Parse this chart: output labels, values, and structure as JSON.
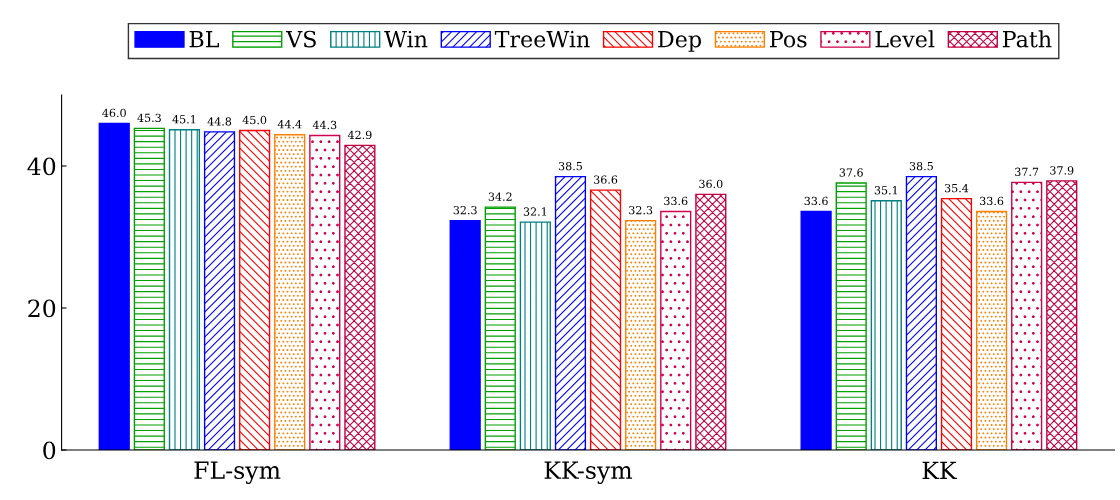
{
  "chart_data": {
    "type": "bar",
    "categories": [
      "FL-sym",
      "KK-sym",
      "KK"
    ],
    "series": [
      {
        "name": "BL",
        "color": "#0000ff",
        "values": [
          46.0,
          32.3,
          33.6
        ],
        "value_labels": [
          "46.0",
          "32.3",
          "33.6"
        ]
      },
      {
        "name": "VS",
        "color": "#00a000",
        "values": [
          45.3,
          34.2,
          37.6
        ],
        "value_labels": [
          "45.3",
          "34.2",
          "37.6"
        ]
      },
      {
        "name": "Win",
        "color": "#008080",
        "values": [
          45.1,
          32.1,
          35.1
        ],
        "value_labels": [
          "45.1",
          "32.1",
          "35.1"
        ]
      },
      {
        "name": "TreeWin",
        "color": "#0000ff",
        "values": [
          44.8,
          38.5,
          38.5
        ],
        "value_labels": [
          "44.8",
          "38.5",
          "38.5"
        ]
      },
      {
        "name": "Dep",
        "color": "#ff0000",
        "values": [
          45.0,
          36.6,
          35.4
        ],
        "value_labels": [
          "45.0",
          "36.6",
          "35.4"
        ]
      },
      {
        "name": "Pos",
        "color": "#ff8000",
        "values": [
          44.4,
          32.3,
          33.6
        ],
        "value_labels": [
          "44.4",
          "32.3",
          "33.6"
        ]
      },
      {
        "name": "Level",
        "color": "#d0004c",
        "values": [
          44.3,
          33.6,
          37.7
        ],
        "value_labels": [
          "44.3",
          "33.6",
          "37.7"
        ]
      },
      {
        "name": "Path",
        "color": "#c00040",
        "values": [
          42.9,
          36.0,
          37.9
        ],
        "value_labels": [
          "42.9",
          "36.0",
          "37.9"
        ]
      }
    ],
    "ylim": [
      0,
      50
    ],
    "yticks": [
      0,
      20,
      40
    ],
    "legend": "top",
    "grid": false
  }
}
